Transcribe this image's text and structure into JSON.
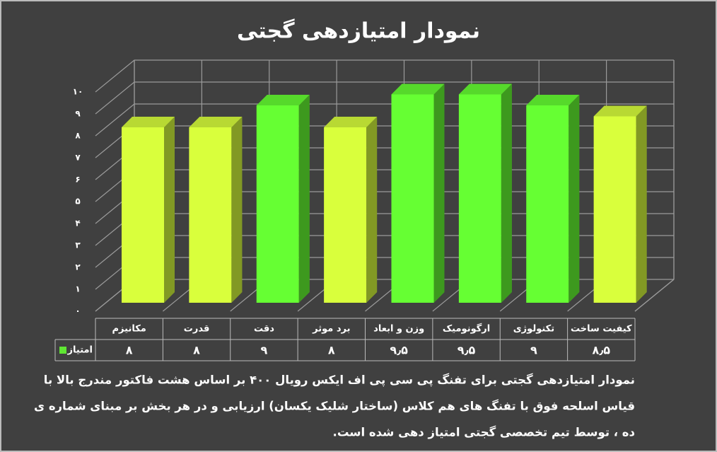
{
  "chart_data": {
    "type": "bar3d",
    "title": "نمودار امتیازدهی گجتی",
    "categories": [
      "مکانیزم",
      "قدرت",
      "دقت",
      "برد موثر",
      "وزن و ابعاد",
      "ارگونومیک",
      "تکنولوژی",
      "کیفیت ساخت"
    ],
    "series": [
      {
        "name": "امتیاز",
        "color": "#5fe633",
        "values": [
          8,
          8,
          9,
          8,
          9.5,
          9.5,
          9,
          8.5
        ],
        "value_labels": [
          "۸",
          "۸",
          "۹",
          "۸",
          "۹٫۵",
          "۹٫۵",
          "۹",
          "۸٫۵"
        ],
        "colors": [
          "#d9ff3c",
          "#d9ff3c",
          "#66ff33",
          "#d9ff3c",
          "#66ff33",
          "#66ff33",
          "#66ff33",
          "#d9ff3c"
        ]
      }
    ],
    "ylim": [
      0,
      10
    ],
    "yticks": [
      {
        "value": 0,
        "label": "۰"
      },
      {
        "value": 1,
        "label": "۱"
      },
      {
        "value": 2,
        "label": "۲"
      },
      {
        "value": 3,
        "label": "۳"
      },
      {
        "value": 4,
        "label": "۴"
      },
      {
        "value": 5,
        "label": "۵"
      },
      {
        "value": 6,
        "label": "۶"
      },
      {
        "value": 7,
        "label": "۷"
      },
      {
        "value": 8,
        "label": "۸"
      },
      {
        "value": 9,
        "label": "۹"
      },
      {
        "value": 10,
        "label": "۱۰"
      }
    ],
    "grid": true,
    "data_table": true
  },
  "caption": [
    "نمودار امتیازدهی گجتی برای تفنگ پی سی پی اف ایکس رویال ۴۰۰  بر اساس هشت فاکتور مندرج بالا با",
    "قیاس اسلحه فوق با تفنگ های هم کلاس (ساختار شلیک یکسان) ارزیابی و در هر بخش بر مبنای شماره ی",
    "ده ، توسط تیم تخصصی گجتی امتیاز دهی شده است."
  ]
}
